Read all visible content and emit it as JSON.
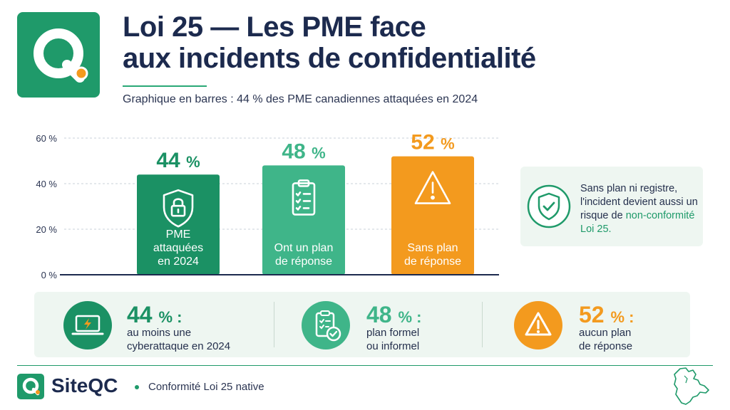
{
  "header": {
    "title_line1": "Loi 25 — Les PME face",
    "title_line2": "aux incidents de confidentialité",
    "subtitle": "Graphique en barres : 44 % des PME canadiennes attaquées en 2024",
    "logo_icon": "q-magnifier-logo-icon"
  },
  "chart_data": {
    "type": "bar",
    "title": "",
    "xlabel": "",
    "ylabel": "",
    "ylim": [
      0,
      60
    ],
    "yticks": [
      0,
      20,
      40,
      60
    ],
    "ytick_labels": [
      "0 %",
      "20 %",
      "40 %",
      "60 %"
    ],
    "grid": true,
    "categories": [
      "PME attaquées en 2024",
      "Ont un plan de réponse",
      "Sans plan de réponse"
    ],
    "category_lines": [
      [
        "PME",
        "attaquées",
        "en 2024"
      ],
      [
        "Ont un plan",
        "de réponse"
      ],
      [
        "Sans plan",
        "de réponse"
      ]
    ],
    "values": [
      44,
      48,
      52
    ],
    "value_labels": [
      "44",
      "48",
      "52"
    ],
    "value_unit": "%",
    "colors": [
      "#1b9164",
      "#3fb589",
      "#f39a1e"
    ],
    "label_colors": [
      "#1b9164",
      "#3fb589",
      "#f39a1e"
    ],
    "icons": [
      "lock-shield-icon",
      "clipboard-checklist-icon",
      "warning-triangle-icon"
    ]
  },
  "note": {
    "text": "Sans plan ni registre, l'incident devient aussi un risque de",
    "highlight": "non-conformité Loi 25.",
    "icon": "shield-check-icon"
  },
  "stats": [
    {
      "value": "44",
      "unit": "% :",
      "line1": "au moins une",
      "line2": "cyberattaque en 2024",
      "color": "#1b9164",
      "icon": "laptop-bolt-icon"
    },
    {
      "value": "48",
      "unit": "% :",
      "line1": "plan formel",
      "line2": "ou informel",
      "color": "#3fb589",
      "icon": "clipboard-check-icon"
    },
    {
      "value": "52",
      "unit": "% :",
      "line1": "aucun plan",
      "line2": "de réponse",
      "color": "#f39a1e",
      "icon": "warning-triangle-icon"
    }
  ],
  "footer": {
    "brand": "SiteQC",
    "tagline": "Conformité Loi 25 native",
    "map_icon": "quebec-map-icon"
  }
}
